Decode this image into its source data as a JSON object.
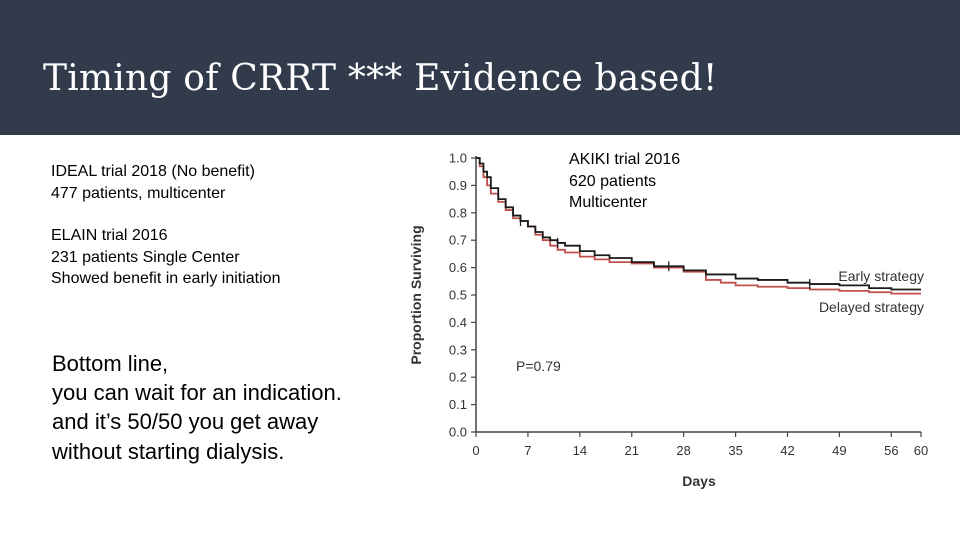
{
  "slide": {
    "title": "Timing of CRRT *** Evidence based!",
    "ideal": [
      "IDEAL trial 2018 (No benefit)",
      "477 patients, multicenter"
    ],
    "elain": [
      "ELAIN trial 2016",
      "231 patients Single Center",
      "Showed benefit in early initiation"
    ],
    "bottom_line": [
      "Bottom line,",
      "you can wait for an indication.",
      "and it’s 50/50 you get away",
      "without starting dialysis."
    ],
    "akiki": [
      "AKIKI trial 2016",
      "620 patients",
      "Multicenter"
    ]
  },
  "chart_data": {
    "type": "line",
    "title": "",
    "xlabel": "Days",
    "ylabel": "Proportion Surviving",
    "xlim": [
      0,
      60
    ],
    "ylim": [
      0,
      1.0
    ],
    "x_ticks": [
      0,
      7,
      14,
      21,
      28,
      35,
      42,
      49,
      56,
      60
    ],
    "y_ticks": [
      "0.0",
      "0.1",
      "0.2",
      "0.3",
      "0.4",
      "0.5",
      "0.6",
      "0.7",
      "0.8",
      "0.9",
      "1.0"
    ],
    "annotation": "P=0.79",
    "series": [
      {
        "name": "Early strategy",
        "color": "#1a1a1a",
        "points": [
          [
            0,
            1.0
          ],
          [
            0.5,
            0.98
          ],
          [
            1,
            0.95
          ],
          [
            1.5,
            0.93
          ],
          [
            2,
            0.89
          ],
          [
            3,
            0.85
          ],
          [
            4,
            0.82
          ],
          [
            5,
            0.79
          ],
          [
            6,
            0.77
          ],
          [
            7,
            0.75
          ],
          [
            8,
            0.73
          ],
          [
            9,
            0.71
          ],
          [
            10,
            0.7
          ],
          [
            11,
            0.69
          ],
          [
            12,
            0.68
          ],
          [
            14,
            0.66
          ],
          [
            16,
            0.645
          ],
          [
            18,
            0.635
          ],
          [
            21,
            0.62
          ],
          [
            24,
            0.605
          ],
          [
            28,
            0.59
          ],
          [
            31,
            0.575
          ],
          [
            35,
            0.56
          ],
          [
            38,
            0.555
          ],
          [
            42,
            0.545
          ],
          [
            45,
            0.54
          ],
          [
            49,
            0.535
          ],
          [
            53,
            0.525
          ],
          [
            56,
            0.52
          ],
          [
            60,
            0.52
          ]
        ]
      },
      {
        "name": "Delayed strategy",
        "color": "#c0504d",
        "points": [
          [
            0,
            1.0
          ],
          [
            0.5,
            0.97
          ],
          [
            1,
            0.93
          ],
          [
            1.5,
            0.9
          ],
          [
            2,
            0.87
          ],
          [
            3,
            0.84
          ],
          [
            4,
            0.81
          ],
          [
            5,
            0.78
          ],
          [
            6,
            0.77
          ],
          [
            7,
            0.75
          ],
          [
            8,
            0.72
          ],
          [
            9,
            0.7
          ],
          [
            10,
            0.68
          ],
          [
            11,
            0.665
          ],
          [
            12,
            0.655
          ],
          [
            14,
            0.64
          ],
          [
            16,
            0.63
          ],
          [
            18,
            0.62
          ],
          [
            21,
            0.615
          ],
          [
            24,
            0.6
          ],
          [
            28,
            0.585
          ],
          [
            31,
            0.555
          ],
          [
            33,
            0.545
          ],
          [
            35,
            0.535
          ],
          [
            38,
            0.53
          ],
          [
            42,
            0.525
          ],
          [
            45,
            0.52
          ],
          [
            49,
            0.515
          ],
          [
            53,
            0.51
          ],
          [
            56,
            0.505
          ],
          [
            60,
            0.505
          ]
        ]
      }
    ]
  }
}
